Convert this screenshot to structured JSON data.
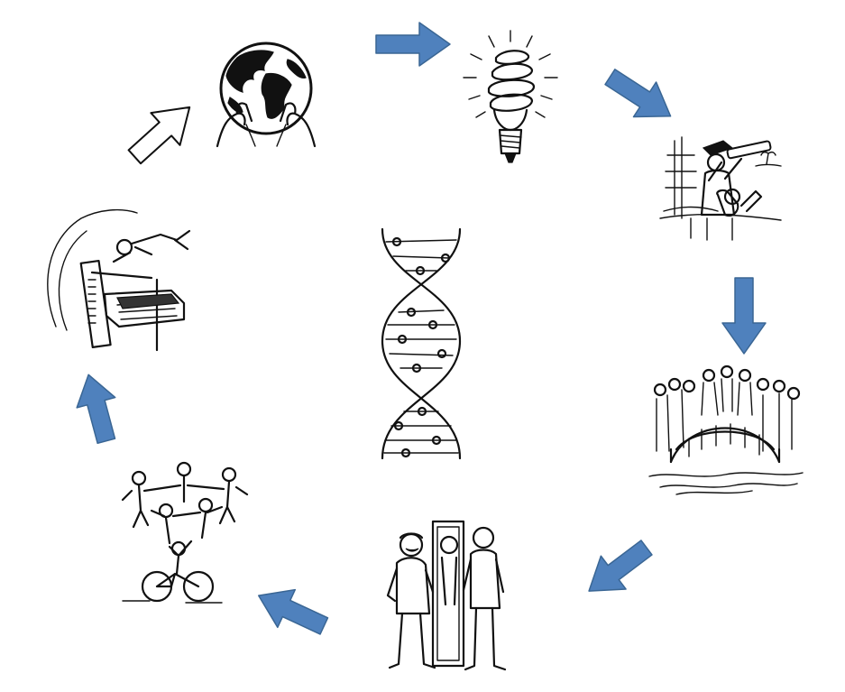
{
  "colors": {
    "arrow_fill": "#4f81bd",
    "arrow_outline": "#3a6694",
    "ink": "#111111",
    "background": "#ffffff"
  },
  "cycle": {
    "items": [
      {
        "id": "globe",
        "icon": "globe-in-hands-icon"
      },
      {
        "id": "idea",
        "icon": "lightbulb-icon"
      },
      {
        "id": "explorer",
        "icon": "explorer-with-telescope-icon"
      },
      {
        "id": "bridge",
        "icon": "people-on-bridge-icon"
      },
      {
        "id": "mirror",
        "icon": "men-with-mirror-icon"
      },
      {
        "id": "team",
        "icon": "human-pyramid-on-bicycle-icon"
      },
      {
        "id": "high-jump",
        "icon": "high-jumper-over-bar-icon"
      }
    ],
    "center": {
      "id": "dna",
      "icon": "dna-helix-of-people-icon"
    },
    "arrows": [
      {
        "from": "globe",
        "to": "idea",
        "style": "filled"
      },
      {
        "from": "idea",
        "to": "explorer",
        "style": "filled"
      },
      {
        "from": "explorer",
        "to": "bridge",
        "style": "filled"
      },
      {
        "from": "bridge",
        "to": "mirror",
        "style": "filled"
      },
      {
        "from": "mirror",
        "to": "team",
        "style": "filled"
      },
      {
        "from": "team",
        "to": "high-jump",
        "style": "filled"
      },
      {
        "from": "high-jump",
        "to": "globe",
        "style": "outline"
      }
    ]
  }
}
